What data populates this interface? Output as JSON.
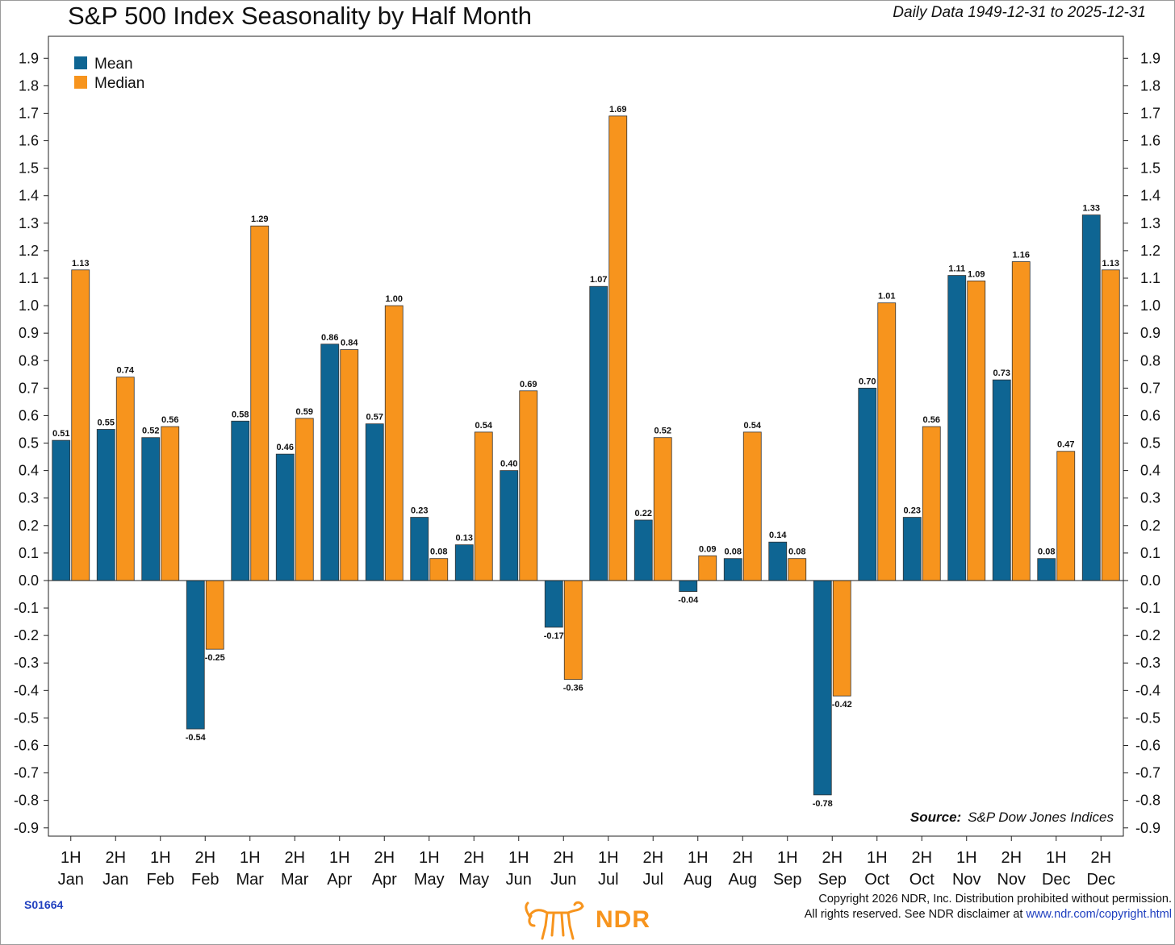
{
  "title": "S&P 500 Index Seasonality by Half Month",
  "date_range": "Daily Data 1949-12-31 to 2025-12-31",
  "source_label": "Source:",
  "source_value": "S&P Dow Jones Indices",
  "chart_code": "S01664",
  "logo_text": "NDR",
  "copyright_line1": "Copyright 2026 NDR, Inc. Distribution prohibited without permission.",
  "copyright_line2_prefix": "All rights reserved. See NDR disclaimer at",
  "copyright_link": "www.ndr.com/copyright.html",
  "colors": {
    "mean": "#0e6593",
    "median": "#f7941d"
  },
  "chart_data": {
    "type": "bar",
    "categories": [
      [
        "1H",
        "Jan"
      ],
      [
        "2H",
        "Jan"
      ],
      [
        "1H",
        "Feb"
      ],
      [
        "2H",
        "Feb"
      ],
      [
        "1H",
        "Mar"
      ],
      [
        "2H",
        "Mar"
      ],
      [
        "1H",
        "Apr"
      ],
      [
        "2H",
        "Apr"
      ],
      [
        "1H",
        "May"
      ],
      [
        "2H",
        "May"
      ],
      [
        "1H",
        "Jun"
      ],
      [
        "2H",
        "Jun"
      ],
      [
        "1H",
        "Jul"
      ],
      [
        "2H",
        "Jul"
      ],
      [
        "1H",
        "Aug"
      ],
      [
        "2H",
        "Aug"
      ],
      [
        "1H",
        "Sep"
      ],
      [
        "2H",
        "Sep"
      ],
      [
        "1H",
        "Oct"
      ],
      [
        "2H",
        "Oct"
      ],
      [
        "1H",
        "Nov"
      ],
      [
        "2H",
        "Nov"
      ],
      [
        "1H",
        "Dec"
      ],
      [
        "2H",
        "Dec"
      ]
    ],
    "series": [
      {
        "name": "Mean",
        "color": "#0e6593",
        "values": [
          0.51,
          0.55,
          0.52,
          -0.54,
          0.58,
          0.46,
          0.86,
          0.57,
          0.23,
          0.13,
          0.4,
          -0.17,
          1.07,
          0.22,
          -0.04,
          0.08,
          0.14,
          -0.78,
          0.7,
          0.23,
          1.11,
          0.73,
          0.08,
          1.33
        ],
        "labels": [
          "0.51",
          "0.55",
          "0.52",
          "-0.54",
          "0.58",
          "0.46",
          "0.86",
          "0.57",
          "0.23",
          "0.13",
          "0.40",
          "-0.17",
          "1.07",
          "0.22",
          "-0.04",
          "0.08",
          "0.14",
          "-0.78",
          "0.70",
          "0.23",
          "1.11",
          "0.73",
          "0.08",
          "1.33"
        ]
      },
      {
        "name": "Median",
        "color": "#f7941d",
        "values": [
          1.13,
          0.74,
          0.56,
          -0.25,
          1.29,
          0.59,
          0.84,
          1.0,
          0.08,
          0.54,
          0.69,
          -0.36,
          1.69,
          0.52,
          0.09,
          0.54,
          0.08,
          -0.42,
          1.01,
          0.56,
          1.09,
          1.16,
          0.47,
          1.13
        ],
        "labels": [
          "1.13",
          "0.74",
          "0.56",
          "-0.25",
          "1.29",
          "0.59",
          "0.84",
          "1.00",
          "0.08",
          "0.54",
          "0.69",
          "-0.36",
          "1.69",
          "0.52",
          "0.09",
          "0.54",
          "0.08",
          "-0.42",
          "1.01",
          "0.56",
          "1.09",
          "1.16",
          "0.47",
          "1.13"
        ]
      }
    ],
    "ylim": [
      -0.93,
      1.98
    ],
    "yticks": [
      "1.9",
      "1.8",
      "1.7",
      "1.6",
      "1.5",
      "1.4",
      "1.3",
      "1.2",
      "1.1",
      "1.0",
      "0.9",
      "0.8",
      "0.7",
      "0.6",
      "0.5",
      "0.4",
      "0.3",
      "0.2",
      "0.1",
      "0.0",
      "-0.1",
      "-0.2",
      "-0.3",
      "-0.4",
      "-0.5",
      "-0.6",
      "-0.7",
      "-0.8",
      "-0.9"
    ],
    "ytick_values": [
      1.9,
      1.8,
      1.7,
      1.6,
      1.5,
      1.4,
      1.3,
      1.2,
      1.1,
      1.0,
      0.9,
      0.8,
      0.7,
      0.6,
      0.5,
      0.4,
      0.3,
      0.2,
      0.1,
      0.0,
      -0.1,
      -0.2,
      -0.3,
      -0.4,
      -0.5,
      -0.6,
      -0.7,
      -0.8,
      -0.9
    ],
    "legend_placement": "top-left",
    "grid": false
  }
}
